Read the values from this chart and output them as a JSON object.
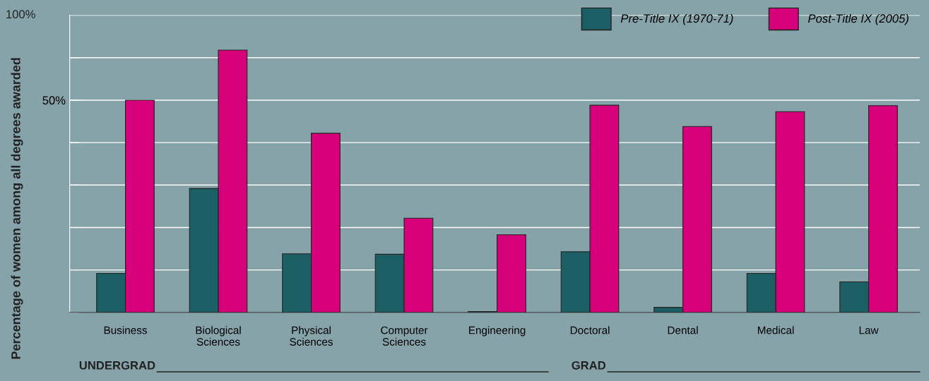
{
  "chart_data": {
    "type": "bar",
    "ylabel": "Percentage of women among all degrees awarded",
    "categories": [
      "Business",
      "Biological\nSciences",
      "Physical\nSciences",
      "Computer\nSciences",
      "Engineering",
      "Doctoral",
      "Dental",
      "Medical",
      "Law"
    ],
    "series": [
      {
        "name": "Pre-Title IX (1970-71)",
        "color": "#1b5e63",
        "values": [
          9.2,
          29.2,
          13.8,
          13.7,
          0.2,
          14.3,
          1.2,
          9.2,
          7.2
        ]
      },
      {
        "name": "Post-Title IX (2005)",
        "color": "#d6007a",
        "values": [
          50,
          61.8,
          42.2,
          22.2,
          18.3,
          48.8,
          43.8,
          47.3,
          48.7
        ]
      }
    ],
    "ylim": [
      0,
      70
    ],
    "yticks": [
      {
        "value": 0,
        "label": null
      },
      {
        "value": 10,
        "label": null
      },
      {
        "value": 20,
        "label": null
      },
      {
        "value": 30,
        "label": null
      },
      {
        "value": 40,
        "label": null
      },
      {
        "value": 50,
        "label": "50%"
      },
      {
        "value": 60,
        "label": null
      }
    ],
    "grid": "y",
    "legend": "top right",
    "annotations": [
      "100%",
      "UNDERGRAD",
      "GRAD"
    ]
  }
}
